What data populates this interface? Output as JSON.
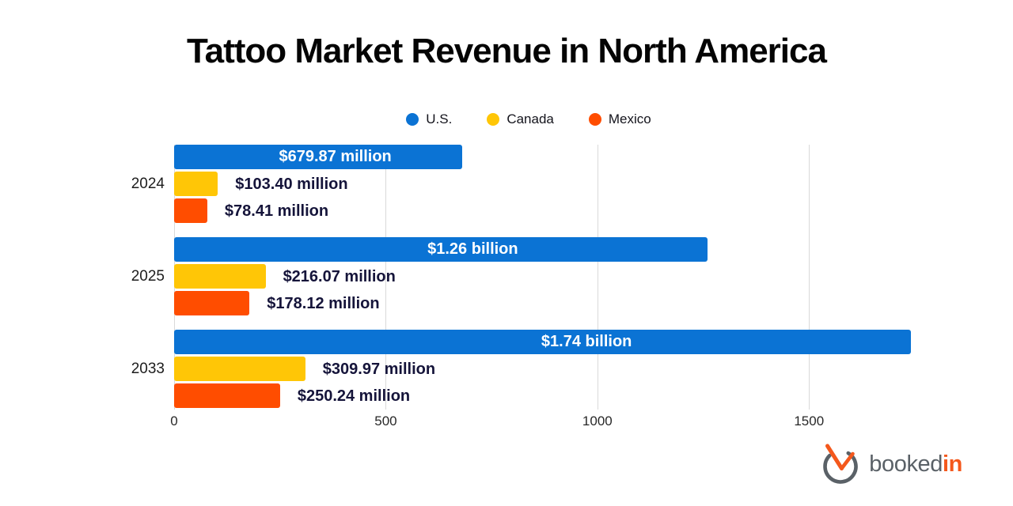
{
  "title": "Tattoo Market Revenue in North America",
  "legend": {
    "items": [
      {
        "label": "U.S.",
        "color": "#0b73d4",
        "icon": "legend-dot-us"
      },
      {
        "label": "Canada",
        "color": "#ffc606",
        "icon": "legend-dot-canada"
      },
      {
        "label": "Mexico",
        "color": "#ff4d00",
        "icon": "legend-dot-mexico"
      }
    ]
  },
  "chart_data": {
    "type": "bar",
    "orientation": "horizontal",
    "title": "Tattoo Market Revenue in North America",
    "unit": "USD millions",
    "categories": [
      "2024",
      "2025",
      "2033"
    ],
    "series": [
      {
        "name": "U.S.",
        "color": "#0b73d4",
        "values": [
          679.87,
          1260,
          1740
        ],
        "value_labels": [
          "$679.87 million",
          "$1.26 billion",
          "$1.74 billion"
        ],
        "label_placement": "inside",
        "label_color": "#ffffff"
      },
      {
        "name": "Canada",
        "color": "#ffc606",
        "values": [
          103.4,
          216.07,
          309.97
        ],
        "value_labels": [
          "$103.40 million",
          "$216.07 million",
          "$309.97 million"
        ],
        "label_placement": "outside",
        "label_color": "#15143a"
      },
      {
        "name": "Mexico",
        "color": "#ff4d00",
        "values": [
          78.41,
          178.12,
          250.24
        ],
        "value_labels": [
          "$78.41 million",
          "$178.12 million",
          "$250.24 million"
        ],
        "label_placement": "outside",
        "label_color": "#15143a"
      }
    ],
    "x_ticks": [
      0,
      500,
      1000,
      1500
    ],
    "xlim": [
      0,
      1765
    ],
    "grid": true,
    "legend_position": "top",
    "gridline_color": "#d9d9d9"
  },
  "branding": {
    "logo_icon": "clock-check-icon",
    "text_primary": "booked",
    "text_accent": "in",
    "primary_color": "#5a6167",
    "accent_color": "#f4581c"
  }
}
